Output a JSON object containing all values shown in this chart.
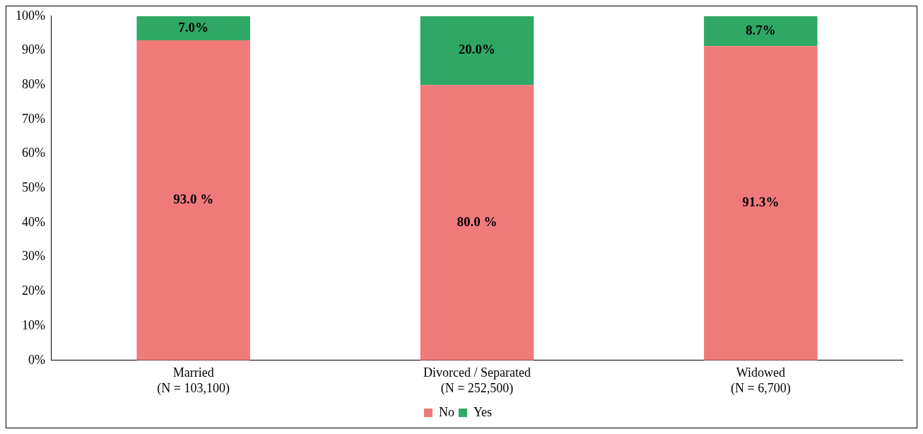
{
  "chart_data": {
    "type": "bar",
    "stacked": true,
    "categories": [
      "Married\n(N = 103,100)",
      "Divorced / Separated\n(N = 252,500)",
      "Widowed\n(N = 6,700)"
    ],
    "series": [
      {
        "name": "No",
        "color": "#f07a7a",
        "values": [
          93.0,
          80.0,
          91.3
        ],
        "value_labels": [
          "93.0 %",
          "80.0 %",
          "91.3%"
        ]
      },
      {
        "name": "Yes",
        "color": "#2fa865",
        "values": [
          7.0,
          20.0,
          8.7
        ],
        "value_labels": [
          "7.0%",
          "20.0%",
          "8.7%"
        ]
      }
    ],
    "ylim": [
      0,
      100
    ],
    "yticks": [
      {
        "value": 0,
        "label": "0%"
      },
      {
        "value": 10,
        "label": "10%"
      },
      {
        "value": 20,
        "label": "20%"
      },
      {
        "value": 30,
        "label": "30%"
      },
      {
        "value": 40,
        "label": "40%"
      },
      {
        "value": 50,
        "label": "50%"
      },
      {
        "value": 60,
        "label": "60%"
      },
      {
        "value": 70,
        "label": "70%"
      },
      {
        "value": 80,
        "label": "80%"
      },
      {
        "value": 90,
        "label": "90%"
      },
      {
        "value": 100,
        "label": "100%"
      }
    ],
    "grid": false,
    "legend": "bottom"
  }
}
